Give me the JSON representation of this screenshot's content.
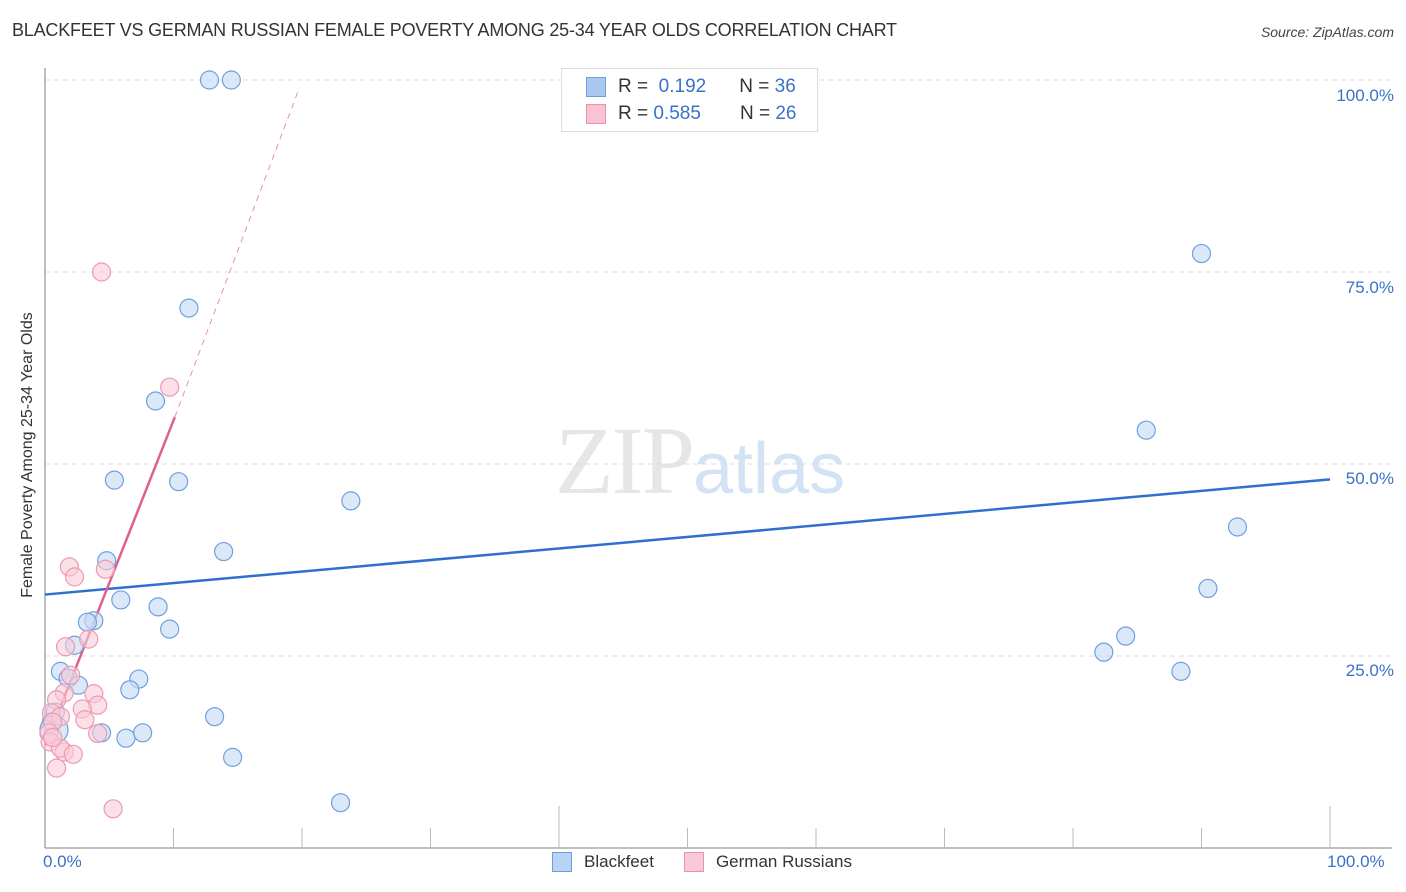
{
  "header": {
    "title": "BLACKFEET VS GERMAN RUSSIAN FEMALE POVERTY AMONG 25-34 YEAR OLDS CORRELATION CHART",
    "source": "Source: ZipAtlas.com"
  },
  "watermark": {
    "zip": "ZIP",
    "atlas": "atlas"
  },
  "legend_top": {
    "rows": [
      {
        "r_label": "R =",
        "r_value": "0.192",
        "n_label": "N =",
        "n_value": "36",
        "color": "#a9c8f0",
        "border": "#6a9ee0"
      },
      {
        "r_label": "R =",
        "r_value": "0.585",
        "n_label": "N =",
        "n_value": "26",
        "color": "#f9c3d3",
        "border": "#e892ad"
      }
    ]
  },
  "legend_bottom": {
    "items": [
      {
        "label": "Blackfeet",
        "color": "#b9d3f4",
        "border": "#6a9ee0"
      },
      {
        "label": "German Russians",
        "color": "#f9c9d7",
        "border": "#e892ad"
      }
    ]
  },
  "axes": {
    "y_ticks": [
      "100.0%",
      "75.0%",
      "50.0%",
      "25.0%"
    ],
    "x_ticks": [
      "0.0%",
      "100.0%"
    ],
    "ylabel": "Female Poverty Among 25-34 Year Olds"
  },
  "colors": {
    "blackfeet_fill": "#c6dbf5",
    "blackfeet_stroke": "#6f9fe0",
    "blackfeet_line": "#2f6fcf",
    "german_fill": "#f9ccd9",
    "german_stroke": "#ec9ab4",
    "german_line": "#e0608a",
    "tick_text": "#3a72c8"
  },
  "chart_data": {
    "type": "scatter",
    "title": "BLACKFEET VS GERMAN RUSSIAN FEMALE POVERTY AMONG 25-34 YEAR OLDS CORRELATION CHART",
    "xlabel": "",
    "ylabel": "Female Poverty Among 25-34 Year Olds",
    "xlim": [
      0,
      100
    ],
    "ylim": [
      0,
      100
    ],
    "x_tick_labels": [
      "0.0%",
      "100.0%"
    ],
    "y_tick_labels": [
      "25.0%",
      "50.0%",
      "75.0%",
      "100.0%"
    ],
    "grid": "horizontal dashed",
    "legend_position": "bottom",
    "series": [
      {
        "name": "Blackfeet",
        "R": 0.192,
        "N": 36,
        "points": [
          [
            12.8,
            100.0
          ],
          [
            14.5,
            100.0
          ],
          [
            90.0,
            77.4
          ],
          [
            11.2,
            70.3
          ],
          [
            8.6,
            58.2
          ],
          [
            85.7,
            54.4
          ],
          [
            5.4,
            47.9
          ],
          [
            10.4,
            47.7
          ],
          [
            23.8,
            45.2
          ],
          [
            92.8,
            41.8
          ],
          [
            13.9,
            38.6
          ],
          [
            4.8,
            37.4
          ],
          [
            90.5,
            33.8
          ],
          [
            5.9,
            32.3
          ],
          [
            8.8,
            31.4
          ],
          [
            3.8,
            29.6
          ],
          [
            3.3,
            29.4
          ],
          [
            9.7,
            28.5
          ],
          [
            2.3,
            26.4
          ],
          [
            84.1,
            27.6
          ],
          [
            82.4,
            25.5
          ],
          [
            1.2,
            23.0
          ],
          [
            88.4,
            23.0
          ],
          [
            1.8,
            22.1
          ],
          [
            7.3,
            22.0
          ],
          [
            2.6,
            21.2
          ],
          [
            6.6,
            20.6
          ],
          [
            0.8,
            17.7
          ],
          [
            13.2,
            17.1
          ],
          [
            0.5,
            16.4
          ],
          [
            4.4,
            15.0
          ],
          [
            6.3,
            14.3
          ],
          [
            7.6,
            15.0
          ],
          [
            14.6,
            11.8
          ],
          [
            23.0,
            5.9
          ],
          [
            0.7,
            15.4
          ]
        ],
        "trendline": {
          "x": [
            0,
            100
          ],
          "y": [
            33.0,
            48.0
          ]
        }
      },
      {
        "name": "German Russians",
        "R": 0.585,
        "N": 26,
        "points": [
          [
            4.4,
            75.0
          ],
          [
            9.7,
            60.0
          ],
          [
            1.9,
            36.6
          ],
          [
            2.3,
            35.3
          ],
          [
            4.7,
            36.3
          ],
          [
            3.4,
            27.2
          ],
          [
            1.6,
            26.2
          ],
          [
            2.0,
            22.5
          ],
          [
            1.5,
            20.2
          ],
          [
            3.8,
            20.1
          ],
          [
            0.9,
            19.3
          ],
          [
            4.1,
            18.6
          ],
          [
            2.9,
            18.1
          ],
          [
            0.5,
            17.6
          ],
          [
            1.2,
            17.1
          ],
          [
            4.1,
            14.9
          ],
          [
            0.6,
            16.4
          ],
          [
            0.3,
            15.0
          ],
          [
            0.4,
            13.8
          ],
          [
            1.5,
            12.5
          ],
          [
            1.2,
            13.0
          ],
          [
            2.2,
            12.2
          ],
          [
            0.9,
            10.4
          ],
          [
            5.3,
            5.1
          ],
          [
            0.6,
            14.4
          ],
          [
            3.1,
            16.7
          ]
        ],
        "trendline": {
          "x_solid": [
            0,
            10.1
          ],
          "y_solid": [
            13.3,
            56.1
          ],
          "x_dashed": [
            10.1,
            19.8
          ],
          "y_dashed": [
            56.1,
            99.0
          ]
        }
      }
    ]
  }
}
